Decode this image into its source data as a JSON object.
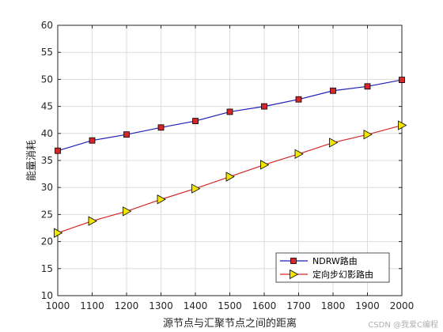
{
  "chart_data": {
    "type": "line",
    "xlabel": "源节点与汇聚节点之间的距离",
    "ylabel": "能量消耗",
    "x": [
      1000,
      1100,
      1200,
      1300,
      1400,
      1500,
      1600,
      1700,
      1800,
      1900,
      2000
    ],
    "xlim": [
      1000,
      2000
    ],
    "ylim": [
      10,
      60
    ],
    "xticks": [
      1000,
      1100,
      1200,
      1300,
      1400,
      1500,
      1600,
      1700,
      1800,
      1900,
      2000
    ],
    "yticks": [
      10,
      15,
      20,
      25,
      30,
      35,
      40,
      45,
      50,
      55,
      60
    ],
    "grid": true,
    "legend_position": "bottom-right",
    "series": [
      {
        "name": "NDRW路由",
        "color": "#1f1fb4",
        "marker": "square",
        "marker_color": "#d62728",
        "values": [
          36.8,
          38.7,
          39.8,
          41.1,
          42.3,
          44.0,
          45.0,
          46.3,
          47.9,
          48.7,
          49.9
        ]
      },
      {
        "name": "定向步幻影路由",
        "color": "#d62728",
        "marker": "triangle-right",
        "marker_color": "#f2e600",
        "values": [
          21.6,
          23.8,
          25.6,
          27.8,
          29.8,
          32.0,
          34.2,
          36.2,
          38.3,
          39.8,
          41.5
        ]
      }
    ]
  },
  "watermark": "CSDN @我爱C编程"
}
